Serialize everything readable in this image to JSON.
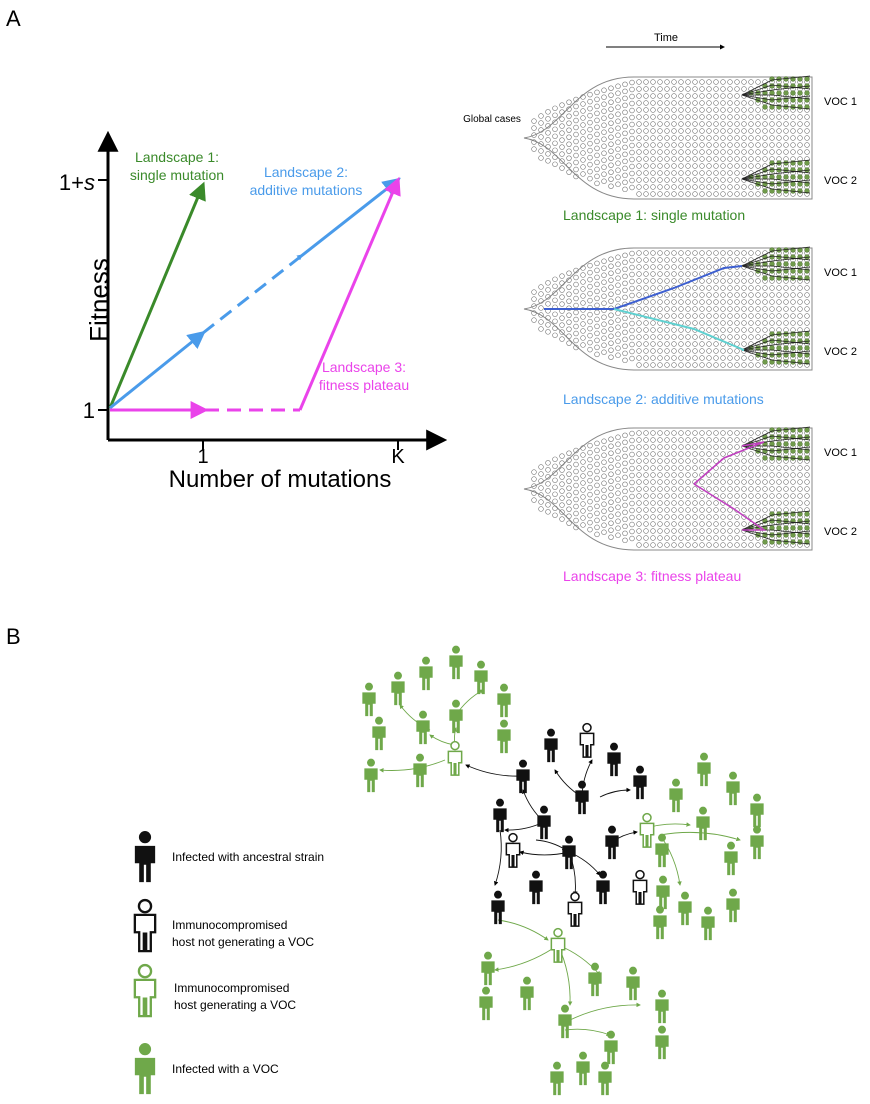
{
  "panel_a": {
    "letter": "A",
    "graph": {
      "y_axis_title": "Fitness",
      "x_axis_title": "Number of mutations",
      "y_ticks": [
        "1+s",
        "1"
      ],
      "x_ticks": [
        "1",
        "K"
      ],
      "landscapes": [
        {
          "label_line1": "Landscape 1:",
          "label_line2": "single mutation",
          "color": "#3a8a2a"
        },
        {
          "label_line1": "Landscape 2:",
          "label_line2": "additive mutations",
          "color": "#4a9bea"
        },
        {
          "label_line1": "Landscape 3:",
          "label_line2": "fitness plateau",
          "color": "#ea43ea"
        }
      ]
    },
    "schematic": {
      "time_label": "Time",
      "global_cases_label": "Global cases",
      "voc1_label": "VOC 1",
      "voc2_label": "VOC 2",
      "captions": [
        {
          "text": "Landscape 1: single mutation",
          "color": "#3a8a2a"
        },
        {
          "text": "Landscape 2: additive mutations",
          "color": "#4a9bea"
        },
        {
          "text": "Landscape 3: fitness plateau",
          "color": "#ea43ea"
        }
      ]
    }
  },
  "panel_b": {
    "letter": "B",
    "legend": [
      {
        "line1": "Infected with ancestral strain",
        "line2": "",
        "icon": "person-solid-black-icon"
      },
      {
        "line1": "Immunocompromised",
        "line2": "host not generating a VOC",
        "icon": "person-outline-black-icon"
      },
      {
        "line1": "Immunocompromised",
        "line2": "host generating a VOC",
        "icon": "person-outline-green-icon"
      },
      {
        "line1": "Infected with a VOC",
        "line2": "",
        "icon": "person-solid-green-icon"
      }
    ],
    "colors": {
      "ancestral": "#111111",
      "voc": "#6fa84a"
    }
  }
}
